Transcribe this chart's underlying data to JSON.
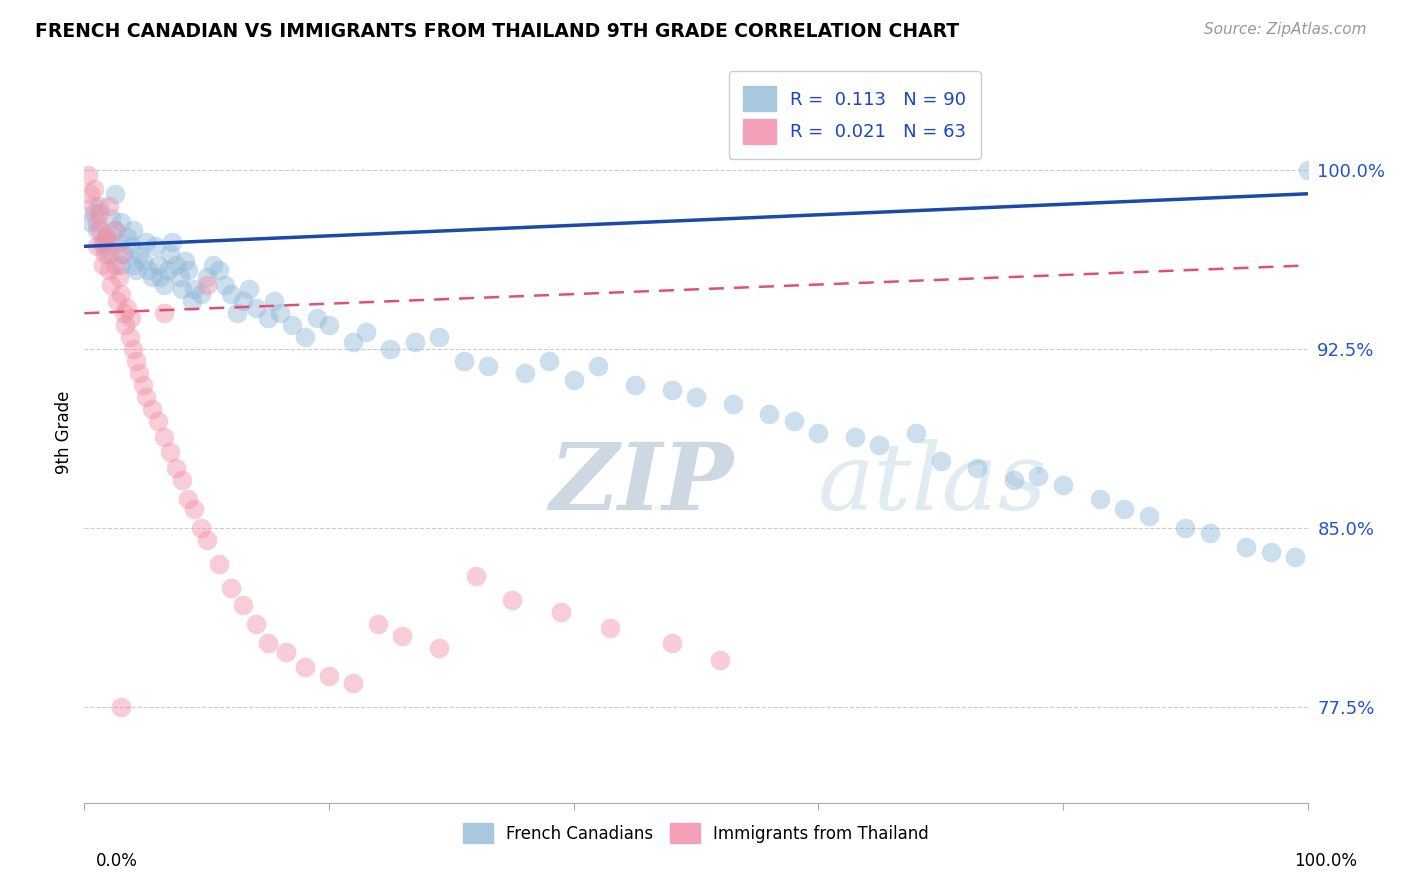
{
  "title": "FRENCH CANADIAN VS IMMIGRANTS FROM THAILAND 9TH GRADE CORRELATION CHART",
  "source": "Source: ZipAtlas.com",
  "ylabel": "9th Grade",
  "yticks": [
    0.775,
    0.85,
    0.925,
    1.0
  ],
  "ytick_labels": [
    "77.5%",
    "85.0%",
    "92.5%",
    "100.0%"
  ],
  "xlim": [
    0.0,
    1.0
  ],
  "ylim": [
    0.735,
    1.045
  ],
  "blue_color": "#90b8d8",
  "pink_color": "#f090a8",
  "blue_line_color": "#1a4aaa",
  "pink_line_color": "#e05070",
  "watermark_zip": "ZIP",
  "watermark_atlas": "atlas",
  "blue_scatter_x": [
    0.005,
    0.008,
    0.01,
    0.012,
    0.015,
    0.018,
    0.02,
    0.022,
    0.025,
    0.025,
    0.028,
    0.03,
    0.03,
    0.032,
    0.035,
    0.038,
    0.04,
    0.04,
    0.042,
    0.045,
    0.048,
    0.05,
    0.052,
    0.055,
    0.058,
    0.06,
    0.062,
    0.065,
    0.068,
    0.07,
    0.072,
    0.075,
    0.078,
    0.08,
    0.082,
    0.085,
    0.088,
    0.09,
    0.095,
    0.1,
    0.105,
    0.11,
    0.115,
    0.12,
    0.125,
    0.13,
    0.135,
    0.14,
    0.15,
    0.155,
    0.16,
    0.17,
    0.18,
    0.19,
    0.2,
    0.22,
    0.23,
    0.25,
    0.27,
    0.29,
    0.31,
    0.33,
    0.36,
    0.38,
    0.4,
    0.42,
    0.45,
    0.48,
    0.5,
    0.53,
    0.56,
    0.58,
    0.6,
    0.63,
    0.65,
    0.68,
    0.7,
    0.73,
    0.76,
    0.78,
    0.8,
    0.83,
    0.85,
    0.87,
    0.9,
    0.92,
    0.95,
    0.97,
    0.99,
    1.0
  ],
  "blue_scatter_y": [
    0.978,
    0.982,
    0.975,
    0.985,
    0.968,
    0.972,
    0.965,
    0.98,
    0.975,
    0.99,
    0.97,
    0.978,
    0.96,
    0.965,
    0.972,
    0.968,
    0.96,
    0.975,
    0.958,
    0.965,
    0.962,
    0.97,
    0.958,
    0.955,
    0.968,
    0.96,
    0.955,
    0.952,
    0.958,
    0.965,
    0.97,
    0.96,
    0.955,
    0.95,
    0.962,
    0.958,
    0.945,
    0.95,
    0.948,
    0.955,
    0.96,
    0.958,
    0.952,
    0.948,
    0.94,
    0.945,
    0.95,
    0.942,
    0.938,
    0.945,
    0.94,
    0.935,
    0.93,
    0.938,
    0.935,
    0.928,
    0.932,
    0.925,
    0.928,
    0.93,
    0.92,
    0.918,
    0.915,
    0.92,
    0.912,
    0.918,
    0.91,
    0.908,
    0.905,
    0.902,
    0.898,
    0.895,
    0.89,
    0.888,
    0.885,
    0.89,
    0.878,
    0.875,
    0.87,
    0.872,
    0.868,
    0.862,
    0.858,
    0.855,
    0.85,
    0.848,
    0.842,
    0.84,
    0.838,
    1.0
  ],
  "pink_scatter_x": [
    0.003,
    0.005,
    0.007,
    0.008,
    0.01,
    0.01,
    0.012,
    0.013,
    0.015,
    0.015,
    0.017,
    0.018,
    0.02,
    0.02,
    0.022,
    0.022,
    0.025,
    0.025,
    0.027,
    0.028,
    0.03,
    0.03,
    0.032,
    0.033,
    0.035,
    0.037,
    0.038,
    0.04,
    0.042,
    0.045,
    0.048,
    0.05,
    0.055,
    0.06,
    0.065,
    0.07,
    0.075,
    0.08,
    0.085,
    0.09,
    0.095,
    0.1,
    0.11,
    0.12,
    0.13,
    0.14,
    0.15,
    0.165,
    0.18,
    0.2,
    0.22,
    0.24,
    0.26,
    0.29,
    0.32,
    0.35,
    0.39,
    0.43,
    0.48,
    0.52,
    0.03,
    0.065,
    0.1
  ],
  "pink_scatter_y": [
    0.998,
    0.99,
    0.985,
    0.992,
    0.978,
    0.968,
    0.982,
    0.975,
    0.97,
    0.96,
    0.965,
    0.972,
    0.958,
    0.985,
    0.952,
    0.968,
    0.975,
    0.96,
    0.945,
    0.955,
    0.948,
    0.965,
    0.94,
    0.935,
    0.942,
    0.93,
    0.938,
    0.925,
    0.92,
    0.915,
    0.91,
    0.905,
    0.9,
    0.895,
    0.888,
    0.882,
    0.875,
    0.87,
    0.862,
    0.858,
    0.85,
    0.845,
    0.835,
    0.825,
    0.818,
    0.81,
    0.802,
    0.798,
    0.792,
    0.788,
    0.785,
    0.81,
    0.805,
    0.8,
    0.83,
    0.82,
    0.815,
    0.808,
    0.802,
    0.795,
    0.775,
    0.94,
    0.952
  ],
  "blue_line_x0": 0.0,
  "blue_line_x1": 1.0,
  "blue_line_y0": 0.968,
  "blue_line_y1": 0.99,
  "pink_line_x0": 0.0,
  "pink_line_x1": 1.0,
  "pink_line_y0": 0.94,
  "pink_line_y1": 0.96
}
